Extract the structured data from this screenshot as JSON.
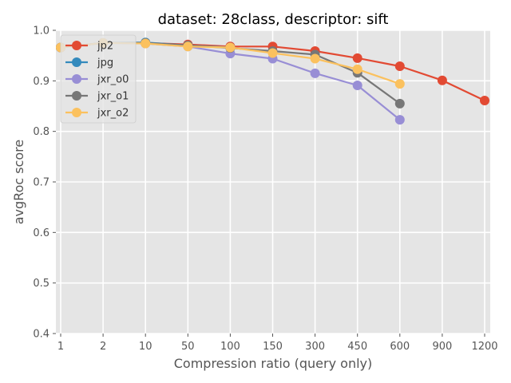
{
  "chart_data": {
    "type": "line",
    "title": "dataset: 28class, descriptor: sift",
    "xlabel": "Compression ratio (query only)",
    "ylabel": "avgRoc score",
    "categories": [
      "1",
      "2",
      "10",
      "50",
      "100",
      "150",
      "300",
      "450",
      "600",
      "900",
      "1200"
    ],
    "ylim": [
      0.4,
      1.0
    ],
    "yticks": [
      "0.4",
      "0.5",
      "0.6",
      "0.7",
      "0.8",
      "0.9",
      "1.0"
    ],
    "grid": true,
    "legend_position": "top-left",
    "series": [
      {
        "name": "jp2",
        "color": "#E24A33",
        "values": [
          0.966,
          0.975,
          0.975,
          0.972,
          0.968,
          0.968,
          0.959,
          0.945,
          0.929,
          0.901,
          0.861
        ]
      },
      {
        "name": "jpg",
        "color": "#348ABD",
        "values": [
          0.966,
          0.975,
          0.976,
          0.97,
          0.966,
          null,
          null,
          null,
          null,
          null,
          null
        ]
      },
      {
        "name": "jxr_o0",
        "color": "#988ED5",
        "values": [
          0.966,
          0.975,
          0.974,
          0.968,
          0.954,
          0.944,
          0.915,
          0.891,
          0.823,
          null,
          null
        ]
      },
      {
        "name": "jxr_o1",
        "color": "#777777",
        "values": [
          0.966,
          0.975,
          0.975,
          0.97,
          0.965,
          0.959,
          0.952,
          0.916,
          0.855,
          null,
          null
        ]
      },
      {
        "name": "jxr_o2",
        "color": "#FBC15E",
        "values": [
          0.966,
          0.975,
          0.974,
          0.968,
          0.966,
          0.955,
          0.944,
          0.923,
          0.894,
          null,
          null
        ]
      }
    ]
  }
}
